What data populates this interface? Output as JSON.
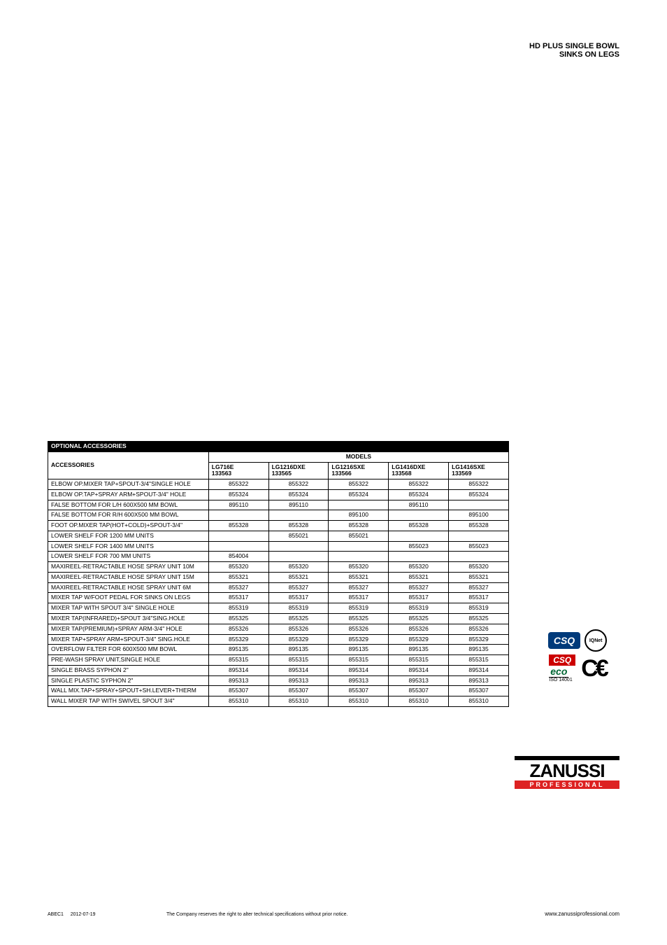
{
  "header": {
    "title": "HD PLUS SINGLE BOWL SINKS ON LEGS"
  },
  "table": {
    "group_label": "OPTIONAL ACCESSORIES",
    "accessories_label": "ACCESSORIES",
    "models_label": "MODELS",
    "columns": [
      {
        "name": "LG716E",
        "code": "133563"
      },
      {
        "name": "LG1216DXE",
        "code": "133565"
      },
      {
        "name": "LG1216SXE",
        "code": "133566"
      },
      {
        "name": "LG1416DXE",
        "code": "133568"
      },
      {
        "name": "LG1416SXE",
        "code": "133569"
      }
    ],
    "rows": [
      {
        "name": "ELBOW OP.MIXER TAP+SPOUT-3/4\"SINGLE HOLE",
        "v": [
          "855322",
          "855322",
          "855322",
          "855322",
          "855322"
        ]
      },
      {
        "name": "ELBOW OP.TAP+SPRAY ARM+SPOUT-3/4\" HOLE",
        "v": [
          "855324",
          "855324",
          "855324",
          "855324",
          "855324"
        ]
      },
      {
        "name": "FALSE BOTTOM FOR L/H 600X500 MM BOWL",
        "v": [
          "895110",
          "895110",
          "",
          "895110",
          ""
        ]
      },
      {
        "name": "FALSE BOTTOM FOR R/H 600X500 MM BOWL",
        "v": [
          "",
          "",
          "895100",
          "",
          "895100"
        ]
      },
      {
        "name": "FOOT OP.MIXER TAP(HOT+COLD)+SPOUT-3/4\"",
        "v": [
          "855328",
          "855328",
          "855328",
          "855328",
          "855328"
        ]
      },
      {
        "name": "LOWER SHELF FOR 1200 MM UNITS",
        "v": [
          "",
          "855021",
          "855021",
          "",
          ""
        ]
      },
      {
        "name": "LOWER SHELF FOR 1400 MM UNITS",
        "v": [
          "",
          "",
          "",
          "855023",
          "855023"
        ]
      },
      {
        "name": "LOWER SHELF FOR 700 MM UNITS",
        "v": [
          "854004",
          "",
          "",
          "",
          ""
        ]
      },
      {
        "name": "MAXIREEL-RETRACTABLE HOSE SPRAY UNIT 10M",
        "v": [
          "855320",
          "855320",
          "855320",
          "855320",
          "855320"
        ]
      },
      {
        "name": "MAXIREEL-RETRACTABLE HOSE SPRAY UNIT 15M",
        "v": [
          "855321",
          "855321",
          "855321",
          "855321",
          "855321"
        ]
      },
      {
        "name": "MAXIREEL-RETRACTABLE HOSE SPRAY UNIT 6M",
        "v": [
          "855327",
          "855327",
          "855327",
          "855327",
          "855327"
        ]
      },
      {
        "name": "MIXER TAP W/FOOT PEDAL FOR SINKS ON LEGS",
        "v": [
          "855317",
          "855317",
          "855317",
          "855317",
          "855317"
        ]
      },
      {
        "name": "MIXER TAP WITH SPOUT 3/4\" SINGLE HOLE",
        "v": [
          "855319",
          "855319",
          "855319",
          "855319",
          "855319"
        ]
      },
      {
        "name": "MIXER TAP(INFRARED)+SPOUT 3/4\"SING.HOLE",
        "v": [
          "855325",
          "855325",
          "855325",
          "855325",
          "855325"
        ]
      },
      {
        "name": "MIXER TAP(PREMIUM)+SPRAY ARM-3/4\" HOLE",
        "v": [
          "855326",
          "855326",
          "855326",
          "855326",
          "855326"
        ]
      },
      {
        "name": "MIXER TAP+SPRAY ARM+SPOUT-3/4\" SING.HOLE",
        "v": [
          "855329",
          "855329",
          "855329",
          "855329",
          "855329"
        ]
      },
      {
        "name": "OVERFLOW FILTER FOR 600X500 MM BOWL",
        "v": [
          "895135",
          "895135",
          "895135",
          "895135",
          "895135"
        ]
      },
      {
        "name": "PRE-WASH SPRAY UNIT,SINGLE HOLE",
        "v": [
          "855315",
          "855315",
          "855315",
          "855315",
          "855315"
        ]
      },
      {
        "name": "SINGLE BRASS SYPHON 2\"",
        "v": [
          "895314",
          "895314",
          "895314",
          "895314",
          "895314"
        ]
      },
      {
        "name": "SINGLE PLASTIC SYPHON 2\"",
        "v": [
          "895313",
          "895313",
          "895313",
          "895313",
          "895313"
        ]
      },
      {
        "name": "WALL MIX.TAP+SPRAY+SPOUT+SH.LEVER+THERM",
        "v": [
          "855307",
          "855307",
          "855307",
          "855307",
          "855307"
        ]
      },
      {
        "name": "WALL MIXER TAP WITH SWIVEL SPOUT 3/4\"",
        "v": [
          "855310",
          "855310",
          "855310",
          "855310",
          "855310"
        ]
      }
    ]
  },
  "certs": {
    "csq": "CSQ",
    "iqnet": "IQNet",
    "eco": "eco",
    "iso": "ISO 14001",
    "ce": "CE"
  },
  "brand": {
    "name": "ZANUSSI",
    "sub": "PROFESSIONAL",
    "url": "www.zanussiprofessional.com"
  },
  "footer": {
    "doc_id": "ABEC1",
    "date": "2012-07-19",
    "disclaimer": "The Company reserves the right to alter technical specifications without prior notice."
  },
  "style": {
    "table_font_size": 8.5,
    "header_bg": "#000000",
    "header_fg": "#ffffff",
    "border_color": "#000000",
    "title_font_size": 11,
    "brand_red": "#d22222"
  }
}
